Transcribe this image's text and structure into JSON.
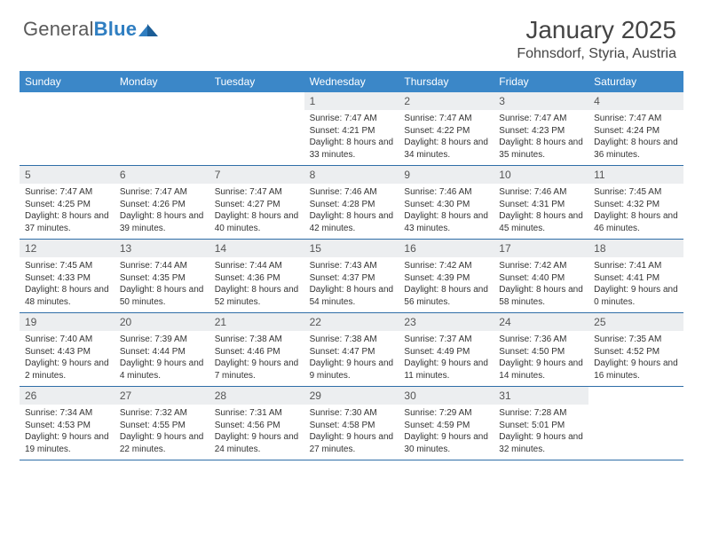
{
  "logo": {
    "name1": "General",
    "name2": "Blue"
  },
  "title": "January 2025",
  "location": "Fohnsdorf, Styria, Austria",
  "colors": {
    "headerBar": "#3b87c8",
    "weekBorder": "#2f6ea8",
    "dayNumBg": "#eceef0",
    "text": "#333333",
    "titleText": "#444444",
    "logoGray": "#5a5a5a",
    "logoBlue": "#2f7ec1"
  },
  "weekdays": [
    "Sunday",
    "Monday",
    "Tuesday",
    "Wednesday",
    "Thursday",
    "Friday",
    "Saturday"
  ],
  "weeks": [
    [
      {
        "n": "",
        "sunrise": "",
        "sunset": "",
        "daylight": ""
      },
      {
        "n": "",
        "sunrise": "",
        "sunset": "",
        "daylight": ""
      },
      {
        "n": "",
        "sunrise": "",
        "sunset": "",
        "daylight": ""
      },
      {
        "n": "1",
        "sunrise": "Sunrise: 7:47 AM",
        "sunset": "Sunset: 4:21 PM",
        "daylight": "Daylight: 8 hours and 33 minutes."
      },
      {
        "n": "2",
        "sunrise": "Sunrise: 7:47 AM",
        "sunset": "Sunset: 4:22 PM",
        "daylight": "Daylight: 8 hours and 34 minutes."
      },
      {
        "n": "3",
        "sunrise": "Sunrise: 7:47 AM",
        "sunset": "Sunset: 4:23 PM",
        "daylight": "Daylight: 8 hours and 35 minutes."
      },
      {
        "n": "4",
        "sunrise": "Sunrise: 7:47 AM",
        "sunset": "Sunset: 4:24 PM",
        "daylight": "Daylight: 8 hours and 36 minutes."
      }
    ],
    [
      {
        "n": "5",
        "sunrise": "Sunrise: 7:47 AM",
        "sunset": "Sunset: 4:25 PM",
        "daylight": "Daylight: 8 hours and 37 minutes."
      },
      {
        "n": "6",
        "sunrise": "Sunrise: 7:47 AM",
        "sunset": "Sunset: 4:26 PM",
        "daylight": "Daylight: 8 hours and 39 minutes."
      },
      {
        "n": "7",
        "sunrise": "Sunrise: 7:47 AM",
        "sunset": "Sunset: 4:27 PM",
        "daylight": "Daylight: 8 hours and 40 minutes."
      },
      {
        "n": "8",
        "sunrise": "Sunrise: 7:46 AM",
        "sunset": "Sunset: 4:28 PM",
        "daylight": "Daylight: 8 hours and 42 minutes."
      },
      {
        "n": "9",
        "sunrise": "Sunrise: 7:46 AM",
        "sunset": "Sunset: 4:30 PM",
        "daylight": "Daylight: 8 hours and 43 minutes."
      },
      {
        "n": "10",
        "sunrise": "Sunrise: 7:46 AM",
        "sunset": "Sunset: 4:31 PM",
        "daylight": "Daylight: 8 hours and 45 minutes."
      },
      {
        "n": "11",
        "sunrise": "Sunrise: 7:45 AM",
        "sunset": "Sunset: 4:32 PM",
        "daylight": "Daylight: 8 hours and 46 minutes."
      }
    ],
    [
      {
        "n": "12",
        "sunrise": "Sunrise: 7:45 AM",
        "sunset": "Sunset: 4:33 PM",
        "daylight": "Daylight: 8 hours and 48 minutes."
      },
      {
        "n": "13",
        "sunrise": "Sunrise: 7:44 AM",
        "sunset": "Sunset: 4:35 PM",
        "daylight": "Daylight: 8 hours and 50 minutes."
      },
      {
        "n": "14",
        "sunrise": "Sunrise: 7:44 AM",
        "sunset": "Sunset: 4:36 PM",
        "daylight": "Daylight: 8 hours and 52 minutes."
      },
      {
        "n": "15",
        "sunrise": "Sunrise: 7:43 AM",
        "sunset": "Sunset: 4:37 PM",
        "daylight": "Daylight: 8 hours and 54 minutes."
      },
      {
        "n": "16",
        "sunrise": "Sunrise: 7:42 AM",
        "sunset": "Sunset: 4:39 PM",
        "daylight": "Daylight: 8 hours and 56 minutes."
      },
      {
        "n": "17",
        "sunrise": "Sunrise: 7:42 AM",
        "sunset": "Sunset: 4:40 PM",
        "daylight": "Daylight: 8 hours and 58 minutes."
      },
      {
        "n": "18",
        "sunrise": "Sunrise: 7:41 AM",
        "sunset": "Sunset: 4:41 PM",
        "daylight": "Daylight: 9 hours and 0 minutes."
      }
    ],
    [
      {
        "n": "19",
        "sunrise": "Sunrise: 7:40 AM",
        "sunset": "Sunset: 4:43 PM",
        "daylight": "Daylight: 9 hours and 2 minutes."
      },
      {
        "n": "20",
        "sunrise": "Sunrise: 7:39 AM",
        "sunset": "Sunset: 4:44 PM",
        "daylight": "Daylight: 9 hours and 4 minutes."
      },
      {
        "n": "21",
        "sunrise": "Sunrise: 7:38 AM",
        "sunset": "Sunset: 4:46 PM",
        "daylight": "Daylight: 9 hours and 7 minutes."
      },
      {
        "n": "22",
        "sunrise": "Sunrise: 7:38 AM",
        "sunset": "Sunset: 4:47 PM",
        "daylight": "Daylight: 9 hours and 9 minutes."
      },
      {
        "n": "23",
        "sunrise": "Sunrise: 7:37 AM",
        "sunset": "Sunset: 4:49 PM",
        "daylight": "Daylight: 9 hours and 11 minutes."
      },
      {
        "n": "24",
        "sunrise": "Sunrise: 7:36 AM",
        "sunset": "Sunset: 4:50 PM",
        "daylight": "Daylight: 9 hours and 14 minutes."
      },
      {
        "n": "25",
        "sunrise": "Sunrise: 7:35 AM",
        "sunset": "Sunset: 4:52 PM",
        "daylight": "Daylight: 9 hours and 16 minutes."
      }
    ],
    [
      {
        "n": "26",
        "sunrise": "Sunrise: 7:34 AM",
        "sunset": "Sunset: 4:53 PM",
        "daylight": "Daylight: 9 hours and 19 minutes."
      },
      {
        "n": "27",
        "sunrise": "Sunrise: 7:32 AM",
        "sunset": "Sunset: 4:55 PM",
        "daylight": "Daylight: 9 hours and 22 minutes."
      },
      {
        "n": "28",
        "sunrise": "Sunrise: 7:31 AM",
        "sunset": "Sunset: 4:56 PM",
        "daylight": "Daylight: 9 hours and 24 minutes."
      },
      {
        "n": "29",
        "sunrise": "Sunrise: 7:30 AM",
        "sunset": "Sunset: 4:58 PM",
        "daylight": "Daylight: 9 hours and 27 minutes."
      },
      {
        "n": "30",
        "sunrise": "Sunrise: 7:29 AM",
        "sunset": "Sunset: 4:59 PM",
        "daylight": "Daylight: 9 hours and 30 minutes."
      },
      {
        "n": "31",
        "sunrise": "Sunrise: 7:28 AM",
        "sunset": "Sunset: 5:01 PM",
        "daylight": "Daylight: 9 hours and 32 minutes."
      },
      {
        "n": "",
        "sunrise": "",
        "sunset": "",
        "daylight": ""
      }
    ]
  ]
}
